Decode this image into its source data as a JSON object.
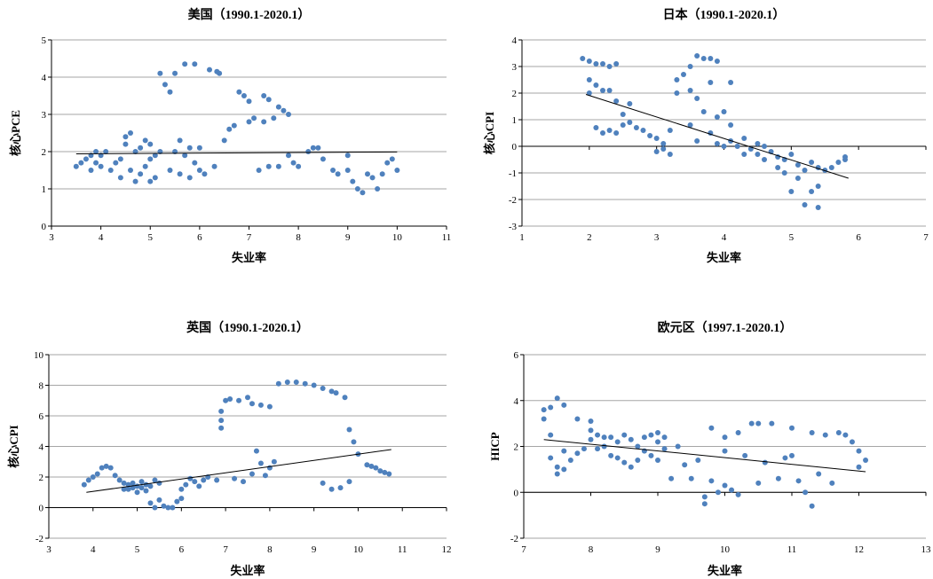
{
  "chart_data": [
    {
      "type": "scatter",
      "title": "美国（1990.1-2020.1）",
      "xlabel": "失业率",
      "ylabel": "核心PCE",
      "xlim": [
        3,
        11
      ],
      "ylim": [
        0,
        5
      ],
      "xticks": [
        "3",
        "4",
        "5",
        "6",
        "7",
        "8",
        "9",
        "10",
        "11"
      ],
      "yticks": [
        "0",
        "1",
        "2",
        "3",
        "4",
        "5"
      ],
      "grid": "horizontal",
      "point_color": "#4F81BD",
      "trendline": [
        [
          3.5,
          1.94
        ],
        [
          10.0,
          1.99
        ]
      ],
      "points": [
        [
          3.5,
          1.6
        ],
        [
          3.6,
          1.7
        ],
        [
          3.7,
          1.8
        ],
        [
          3.8,
          1.9
        ],
        [
          3.9,
          2.0
        ],
        [
          3.8,
          1.5
        ],
        [
          3.9,
          1.7
        ],
        [
          4.0,
          1.9
        ],
        [
          4.1,
          2.0
        ],
        [
          4.0,
          1.6
        ],
        [
          4.2,
          1.5
        ],
        [
          4.3,
          1.7
        ],
        [
          4.4,
          1.3
        ],
        [
          4.4,
          1.8
        ],
        [
          4.5,
          2.2
        ],
        [
          4.5,
          2.4
        ],
        [
          4.6,
          1.5
        ],
        [
          4.6,
          2.5
        ],
        [
          4.7,
          1.2
        ],
        [
          4.7,
          2.0
        ],
        [
          4.8,
          1.4
        ],
        [
          4.8,
          2.1
        ],
        [
          4.9,
          1.6
        ],
        [
          4.9,
          2.3
        ],
        [
          5.0,
          1.8
        ],
        [
          5.0,
          2.2
        ],
        [
          5.0,
          1.2
        ],
        [
          5.1,
          1.3
        ],
        [
          5.1,
          1.9
        ],
        [
          5.2,
          2.0
        ],
        [
          5.2,
          4.1
        ],
        [
          5.3,
          3.8
        ],
        [
          5.4,
          3.6
        ],
        [
          5.5,
          4.1
        ],
        [
          5.4,
          1.5
        ],
        [
          5.5,
          2.0
        ],
        [
          5.6,
          1.4
        ],
        [
          5.6,
          2.3
        ],
        [
          5.7,
          1.9
        ],
        [
          5.7,
          4.35
        ],
        [
          5.9,
          4.35
        ],
        [
          5.8,
          1.3
        ],
        [
          5.8,
          2.1
        ],
        [
          5.9,
          1.7
        ],
        [
          6.0,
          1.5
        ],
        [
          6.0,
          2.1
        ],
        [
          6.1,
          1.4
        ],
        [
          6.2,
          4.2
        ],
        [
          6.3,
          1.6
        ],
        [
          6.35,
          4.15
        ],
        [
          6.4,
          4.1
        ],
        [
          6.5,
          2.3
        ],
        [
          6.6,
          2.6
        ],
        [
          6.7,
          2.7
        ],
        [
          6.8,
          3.6
        ],
        [
          6.9,
          3.5
        ],
        [
          7.0,
          3.35
        ],
        [
          7.0,
          2.8
        ],
        [
          7.1,
          2.9
        ],
        [
          7.2,
          1.5
        ],
        [
          7.3,
          3.5
        ],
        [
          7.3,
          2.8
        ],
        [
          7.4,
          3.4
        ],
        [
          7.4,
          1.6
        ],
        [
          7.5,
          2.9
        ],
        [
          7.6,
          3.2
        ],
        [
          7.7,
          3.1
        ],
        [
          7.8,
          3.0
        ],
        [
          7.6,
          1.6
        ],
        [
          7.8,
          1.9
        ],
        [
          7.9,
          1.7
        ],
        [
          8.0,
          1.6
        ],
        [
          8.2,
          2.0
        ],
        [
          8.3,
          2.1
        ],
        [
          8.4,
          2.1
        ],
        [
          8.5,
          1.8
        ],
        [
          8.7,
          1.5
        ],
        [
          8.8,
          1.4
        ],
        [
          9.0,
          1.5
        ],
        [
          9.1,
          1.2
        ],
        [
          9.2,
          1.0
        ],
        [
          9.3,
          0.9
        ],
        [
          9.4,
          1.4
        ],
        [
          9.5,
          1.3
        ],
        [
          9.6,
          1.0
        ],
        [
          9.7,
          1.4
        ],
        [
          9.8,
          1.7
        ],
        [
          9.9,
          1.8
        ],
        [
          10.0,
          1.5
        ],
        [
          9.0,
          1.9
        ]
      ]
    },
    {
      "type": "scatter",
      "title": "日本（1990.1-2020.1）",
      "xlabel": "失业率",
      "ylabel": "核心CPI",
      "xlim": [
        1,
        7
      ],
      "ylim": [
        -3,
        4
      ],
      "xticks": [
        "1",
        "2",
        "3",
        "4",
        "5",
        "6",
        "7"
      ],
      "yticks": [
        "-3",
        "-2",
        "-1",
        "0",
        "1",
        "2",
        "3",
        "4"
      ],
      "grid": "horizontal",
      "point_color": "#4F81BD",
      "trendline": [
        [
          1.95,
          1.95
        ],
        [
          5.85,
          -1.2
        ]
      ],
      "points": [
        [
          1.9,
          3.3
        ],
        [
          2.0,
          3.2
        ],
        [
          2.0,
          2.5
        ],
        [
          2.0,
          2.0
        ],
        [
          2.1,
          3.1
        ],
        [
          2.1,
          2.3
        ],
        [
          2.2,
          3.1
        ],
        [
          2.2,
          2.1
        ],
        [
          2.3,
          3.0
        ],
        [
          2.3,
          2.1
        ],
        [
          2.1,
          0.7
        ],
        [
          2.2,
          0.5
        ],
        [
          2.3,
          0.6
        ],
        [
          2.4,
          3.1
        ],
        [
          2.4,
          1.7
        ],
        [
          2.4,
          0.5
        ],
        [
          2.5,
          1.2
        ],
        [
          2.5,
          0.8
        ],
        [
          2.6,
          1.6
        ],
        [
          2.6,
          0.9
        ],
        [
          2.7,
          0.7
        ],
        [
          2.8,
          0.6
        ],
        [
          2.9,
          0.4
        ],
        [
          3.0,
          0.3
        ],
        [
          3.0,
          -0.2
        ],
        [
          3.1,
          0.1
        ],
        [
          3.2,
          -0.3
        ],
        [
          3.2,
          0.6
        ],
        [
          3.3,
          2.5
        ],
        [
          3.3,
          2.0
        ],
        [
          3.4,
          2.7
        ],
        [
          3.5,
          3.0
        ],
        [
          3.5,
          2.1
        ],
        [
          3.5,
          0.8
        ],
        [
          3.6,
          3.4
        ],
        [
          3.6,
          1.8
        ],
        [
          3.6,
          0.2
        ],
        [
          3.7,
          3.3
        ],
        [
          3.7,
          1.3
        ],
        [
          3.8,
          3.3
        ],
        [
          3.8,
          2.4
        ],
        [
          3.8,
          0.5
        ],
        [
          3.9,
          3.2
        ],
        [
          3.9,
          1.1
        ],
        [
          3.9,
          0.1
        ],
        [
          4.0,
          1.3
        ],
        [
          4.1,
          2.4
        ],
        [
          4.1,
          0.8
        ],
        [
          4.1,
          0.2
        ],
        [
          4.2,
          0.0
        ],
        [
          4.3,
          0.3
        ],
        [
          4.3,
          -0.3
        ],
        [
          4.4,
          -0.1
        ],
        [
          4.5,
          -0.3
        ],
        [
          4.6,
          -0.5
        ],
        [
          4.6,
          0.0
        ],
        [
          4.7,
          -0.2
        ],
        [
          4.8,
          -0.8
        ],
        [
          4.8,
          -0.4
        ],
        [
          4.9,
          -1.0
        ],
        [
          4.9,
          -0.5
        ],
        [
          5.0,
          -0.3
        ],
        [
          5.0,
          -1.7
        ],
        [
          5.1,
          -0.7
        ],
        [
          5.1,
          -1.2
        ],
        [
          5.2,
          -2.2
        ],
        [
          5.2,
          -0.9
        ],
        [
          5.3,
          -1.7
        ],
        [
          5.3,
          -0.6
        ],
        [
          5.4,
          -0.8
        ],
        [
          5.4,
          -1.5
        ],
        [
          5.4,
          -2.3
        ],
        [
          5.5,
          -0.9
        ],
        [
          5.6,
          -0.8
        ],
        [
          5.7,
          -0.6
        ],
        [
          5.8,
          -0.5
        ],
        [
          5.8,
          -0.4
        ],
        [
          3.1,
          -0.1
        ],
        [
          4.0,
          0.0
        ],
        [
          4.5,
          0.1
        ]
      ]
    },
    {
      "type": "scatter",
      "title": "英国（1990.1-2020.1）",
      "xlabel": "失业率",
      "ylabel": "核心CPI",
      "xlim": [
        3,
        12
      ],
      "ylim": [
        -2,
        10
      ],
      "xticks": [
        "3",
        "4",
        "5",
        "6",
        "7",
        "8",
        "9",
        "10",
        "11",
        "12"
      ],
      "yticks": [
        "-2",
        "0",
        "2",
        "4",
        "6",
        "8",
        "10"
      ],
      "grid": "horizontal",
      "point_color": "#4F81BD",
      "trendline": [
        [
          3.85,
          1.0
        ],
        [
          10.75,
          3.8
        ]
      ],
      "points": [
        [
          3.8,
          1.5
        ],
        [
          3.9,
          1.8
        ],
        [
          4.0,
          2.0
        ],
        [
          4.1,
          2.2
        ],
        [
          4.2,
          2.6
        ],
        [
          4.3,
          2.7
        ],
        [
          4.4,
          2.6
        ],
        [
          4.5,
          2.1
        ],
        [
          4.6,
          1.8
        ],
        [
          4.7,
          1.2
        ],
        [
          4.7,
          1.6
        ],
        [
          4.8,
          1.5
        ],
        [
          4.8,
          1.2
        ],
        [
          4.9,
          1.6
        ],
        [
          4.9,
          1.3
        ],
        [
          5.0,
          1.4
        ],
        [
          5.0,
          1.0
        ],
        [
          5.1,
          1.7
        ],
        [
          5.1,
          1.3
        ],
        [
          5.2,
          1.5
        ],
        [
          5.2,
          1.1
        ],
        [
          5.3,
          0.3
        ],
        [
          5.3,
          1.4
        ],
        [
          5.4,
          0.0
        ],
        [
          5.4,
          1.8
        ],
        [
          5.5,
          1.6
        ],
        [
          5.5,
          0.5
        ],
        [
          5.6,
          0.1
        ],
        [
          5.7,
          0.0
        ],
        [
          5.8,
          0.0
        ],
        [
          5.9,
          0.4
        ],
        [
          6.0,
          0.6
        ],
        [
          6.0,
          1.2
        ],
        [
          6.1,
          1.5
        ],
        [
          6.2,
          1.9
        ],
        [
          6.3,
          1.7
        ],
        [
          6.4,
          1.4
        ],
        [
          6.5,
          1.8
        ],
        [
          6.6,
          2.0
        ],
        [
          6.8,
          1.8
        ],
        [
          6.9,
          5.2
        ],
        [
          6.9,
          5.7
        ],
        [
          6.9,
          6.3
        ],
        [
          7.0,
          7.0
        ],
        [
          7.1,
          7.1
        ],
        [
          7.3,
          7.0
        ],
        [
          7.5,
          7.2
        ],
        [
          7.6,
          6.8
        ],
        [
          7.8,
          6.7
        ],
        [
          8.0,
          6.6
        ],
        [
          7.2,
          1.9
        ],
        [
          7.4,
          1.7
        ],
        [
          7.6,
          2.2
        ],
        [
          7.7,
          3.7
        ],
        [
          7.8,
          2.9
        ],
        [
          7.9,
          2.1
        ],
        [
          8.0,
          2.6
        ],
        [
          8.1,
          3.0
        ],
        [
          8.2,
          8.1
        ],
        [
          8.4,
          8.2
        ],
        [
          8.6,
          8.2
        ],
        [
          8.8,
          8.1
        ],
        [
          9.0,
          8.0
        ],
        [
          9.2,
          7.8
        ],
        [
          9.4,
          7.6
        ],
        [
          9.5,
          7.5
        ],
        [
          9.7,
          7.2
        ],
        [
          9.2,
          1.6
        ],
        [
          9.4,
          1.2
        ],
        [
          9.6,
          1.3
        ],
        [
          9.8,
          1.7
        ],
        [
          9.8,
          5.1
        ],
        [
          9.9,
          4.3
        ],
        [
          10.0,
          3.5
        ],
        [
          10.2,
          2.8
        ],
        [
          10.3,
          2.7
        ],
        [
          10.4,
          2.6
        ],
        [
          10.5,
          2.4
        ],
        [
          10.6,
          2.3
        ],
        [
          10.7,
          2.2
        ]
      ]
    },
    {
      "type": "scatter",
      "title": "欧元区（1997.1-2020.1）",
      "xlabel": "失业率",
      "ylabel": "HICP",
      "xlim": [
        7,
        13
      ],
      "ylim": [
        -2,
        6
      ],
      "xticks": [
        "7",
        "8",
        "9",
        "10",
        "11",
        "12",
        "13"
      ],
      "yticks": [
        "-2",
        "0",
        "2",
        "4",
        "6"
      ],
      "grid": "horizontal",
      "point_color": "#4F81BD",
      "trendline": [
        [
          7.3,
          2.3
        ],
        [
          12.1,
          0.9
        ]
      ],
      "points": [
        [
          7.3,
          3.6
        ],
        [
          7.3,
          3.2
        ],
        [
          7.4,
          3.7
        ],
        [
          7.4,
          2.5
        ],
        [
          7.4,
          1.5
        ],
        [
          7.5,
          4.1
        ],
        [
          7.5,
          1.1
        ],
        [
          7.5,
          0.8
        ],
        [
          7.6,
          3.8
        ],
        [
          7.6,
          1.8
        ],
        [
          7.6,
          1.0
        ],
        [
          7.7,
          1.4
        ],
        [
          7.8,
          1.7
        ],
        [
          7.8,
          3.2
        ],
        [
          7.9,
          1.9
        ],
        [
          8.0,
          3.1
        ],
        [
          8.0,
          2.7
        ],
        [
          8.0,
          2.3
        ],
        [
          8.1,
          2.5
        ],
        [
          8.1,
          1.9
        ],
        [
          8.2,
          2.4
        ],
        [
          8.2,
          2.0
        ],
        [
          8.3,
          2.4
        ],
        [
          8.3,
          1.6
        ],
        [
          8.4,
          2.2
        ],
        [
          8.4,
          1.5
        ],
        [
          8.5,
          2.5
        ],
        [
          8.5,
          1.3
        ],
        [
          8.6,
          2.3
        ],
        [
          8.6,
          1.1
        ],
        [
          8.7,
          2.0
        ],
        [
          8.7,
          1.4
        ],
        [
          8.8,
          2.4
        ],
        [
          8.8,
          1.8
        ],
        [
          8.9,
          2.5
        ],
        [
          8.9,
          1.6
        ],
        [
          9.0,
          2.6
        ],
        [
          9.0,
          2.2
        ],
        [
          9.0,
          1.4
        ],
        [
          9.1,
          1.9
        ],
        [
          9.1,
          2.4
        ],
        [
          9.2,
          0.6
        ],
        [
          9.3,
          2.0
        ],
        [
          9.4,
          1.2
        ],
        [
          9.5,
          0.6
        ],
        [
          9.6,
          1.4
        ],
        [
          9.7,
          -0.2
        ],
        [
          9.7,
          -0.5
        ],
        [
          9.8,
          2.8
        ],
        [
          9.8,
          0.5
        ],
        [
          9.9,
          0.0
        ],
        [
          10.0,
          2.4
        ],
        [
          10.0,
          1.8
        ],
        [
          10.0,
          0.3
        ],
        [
          10.1,
          0.1
        ],
        [
          10.2,
          2.6
        ],
        [
          10.2,
          -0.1
        ],
        [
          10.3,
          1.6
        ],
        [
          10.4,
          3.0
        ],
        [
          10.5,
          3.0
        ],
        [
          10.5,
          0.4
        ],
        [
          10.6,
          1.3
        ],
        [
          10.7,
          3.0
        ],
        [
          10.8,
          0.6
        ],
        [
          10.9,
          1.5
        ],
        [
          11.0,
          2.8
        ],
        [
          11.0,
          1.6
        ],
        [
          11.1,
          0.5
        ],
        [
          11.2,
          0.0
        ],
        [
          11.3,
          -0.6
        ],
        [
          11.3,
          2.6
        ],
        [
          11.4,
          0.8
        ],
        [
          11.5,
          2.5
        ],
        [
          11.6,
          0.4
        ],
        [
          11.7,
          2.6
        ],
        [
          11.8,
          2.5
        ],
        [
          11.9,
          2.2
        ],
        [
          12.0,
          1.1
        ],
        [
          12.0,
          1.8
        ],
        [
          12.1,
          1.4
        ]
      ]
    }
  ]
}
